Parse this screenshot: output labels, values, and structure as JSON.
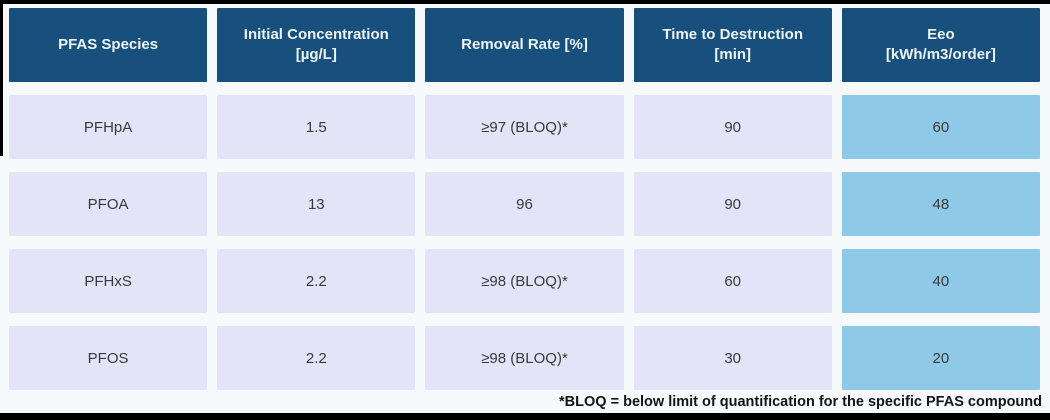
{
  "colors": {
    "page_bg": "#f7fafd",
    "header_bg": "#17507d",
    "header_text": "#eef3f8",
    "row_bg": "#e4e3f8",
    "eeo_column_bg": "#8ecae8",
    "cell_text": "#3a3a3a",
    "footnote_text": "#141414",
    "frame_bar": "#000000"
  },
  "table": {
    "headers": [
      "PFAS Species",
      "Initial Concentration\n[µg/L]",
      "Removal Rate [%]",
      "Time to Destruction\n[min]",
      "Eeo\n[kWh/m3/order]"
    ],
    "rows": [
      [
        "PFHpA",
        "1.5",
        "≥97 (BLOQ)*",
        "90",
        "60"
      ],
      [
        "PFOA",
        "13",
        "96",
        "90",
        "48"
      ],
      [
        "PFHxS",
        "2.2",
        "≥98 (BLOQ)*",
        "60",
        "40"
      ],
      [
        "PFOS",
        "2.2",
        "≥98 (BLOQ)*",
        "30",
        "20"
      ]
    ]
  },
  "footnote": "*BLOQ = below limit of quantification for the specific PFAS compound",
  "chart_data": {
    "type": "table",
    "title": "",
    "columns": [
      "PFAS Species",
      "Initial Concentration [µg/L]",
      "Removal Rate [%]",
      "Time to Destruction [min]",
      "Eeo [kWh/m3/order]"
    ],
    "rows": [
      [
        "PFHpA",
        1.5,
        "≥97 (BLOQ)*",
        90,
        60
      ],
      [
        "PFOA",
        13,
        96,
        90,
        48
      ],
      [
        "PFHxS",
        2.2,
        "≥98 (BLOQ)*",
        60,
        40
      ],
      [
        "PFOS",
        2.2,
        "≥98 (BLOQ)*",
        30,
        20
      ]
    ],
    "highlighted_column": "Eeo [kWh/m3/order]",
    "footnote": "*BLOQ = below limit of quantification for the specific PFAS compound"
  }
}
